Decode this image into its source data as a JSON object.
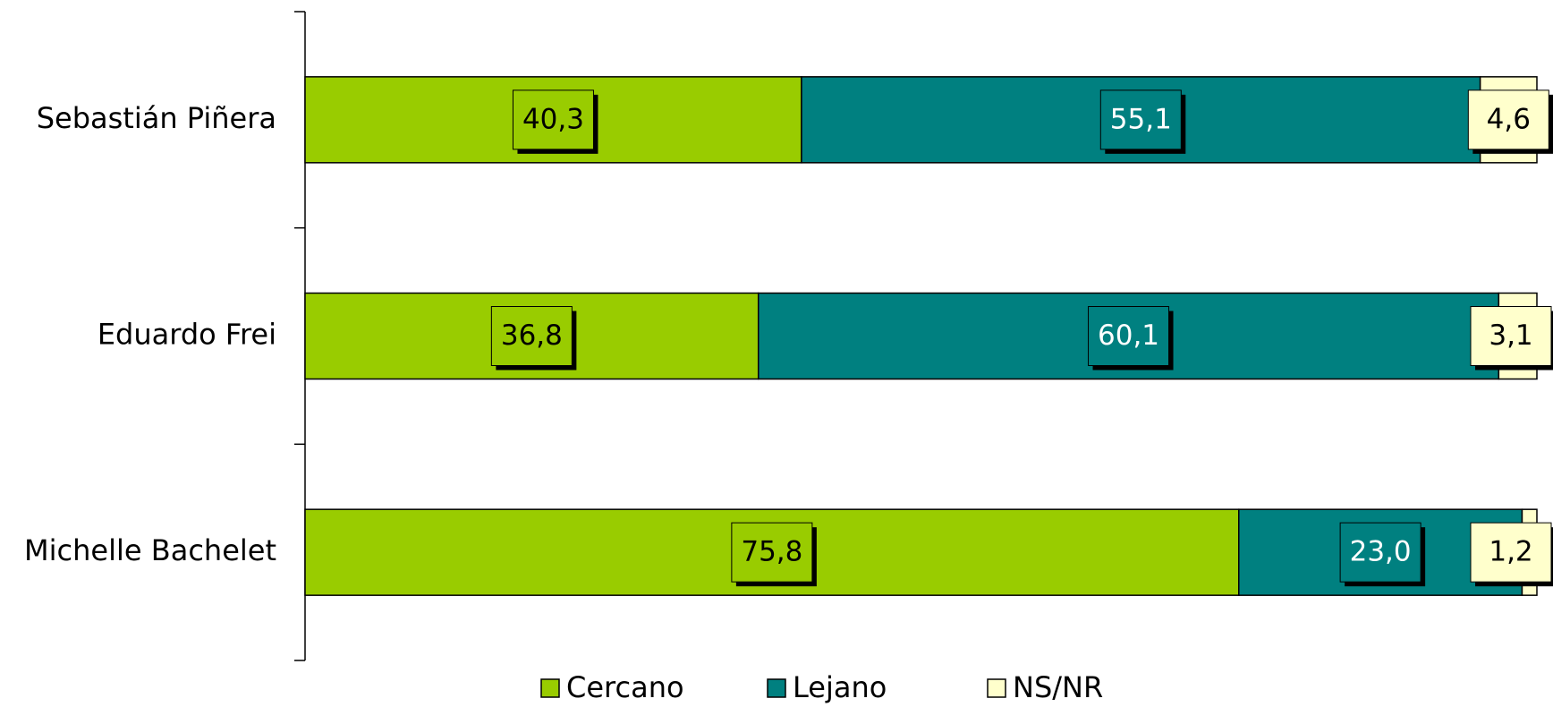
{
  "chart_data": {
    "type": "stacked-bar-horizontal",
    "categories": [
      "Sebastián Piñera",
      "Eduardo Frei",
      "Michelle Bachelet"
    ],
    "xlim": [
      0,
      100
    ],
    "series": [
      {
        "name": "Cercano",
        "color": "#99cc00",
        "values": [
          40.3,
          36.8,
          75.8
        ],
        "value_labels": [
          "40,3",
          "36,8",
          "75,8"
        ]
      },
      {
        "name": "Lejano",
        "color": "#008080",
        "values": [
          55.1,
          60.1,
          23.0
        ],
        "value_labels": [
          "55,1",
          "60,1",
          "23,0"
        ]
      },
      {
        "name": "NS/NR",
        "color": "#ffffcc",
        "values": [
          4.6,
          3.1,
          1.2
        ],
        "value_labels": [
          "4,6",
          "3,1",
          "1,2"
        ]
      }
    ]
  }
}
